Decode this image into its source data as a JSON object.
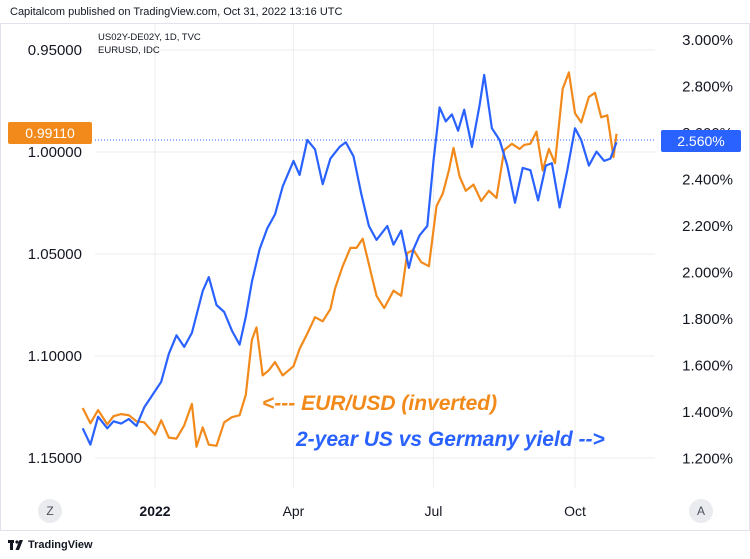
{
  "header": {
    "published": "Capitalcom published on TradingView.com, Oct 31, 2022 13:16 UTC"
  },
  "legend": {
    "series1": "US02Y-DE02Y, 1D, TVC",
    "series2": "EURUSD, IDC"
  },
  "buttons": {
    "left": "Z",
    "right": "A"
  },
  "footer": {
    "brand": "TradingView"
  },
  "colors": {
    "eurusd": "#f28a1b",
    "yield": "#2962ff",
    "grid": "#eeeeee"
  },
  "chart_data": {
    "type": "line",
    "left_axis": {
      "ticks": [
        "0.95000",
        "1.00000",
        "1.05000",
        "1.10000",
        "1.15000"
      ],
      "values": [
        0.95,
        1.0,
        1.05,
        1.1,
        1.15
      ],
      "inverted": true
    },
    "right_axis": {
      "ticks": [
        "3.000%",
        "2.800%",
        "2.600%",
        "2.400%",
        "2.200%",
        "2.000%",
        "1.800%",
        "1.600%",
        "1.400%",
        "1.200%"
      ],
      "values": [
        3.0,
        2.8,
        2.6,
        2.4,
        2.2,
        2.0,
        1.8,
        1.6,
        1.4,
        1.2
      ]
    },
    "x_ticks": [
      {
        "label": "2022",
        "date": "2022-01-01",
        "bold": true
      },
      {
        "label": "Apr",
        "date": "2022-04-01",
        "bold": false
      },
      {
        "label": "Jul",
        "date": "2022-07-01",
        "bold": false
      },
      {
        "label": "Oct",
        "date": "2022-10-01",
        "bold": false
      }
    ],
    "last_values": {
      "eurusd": "0.99110",
      "yield": "2.560%"
    },
    "annotations": {
      "orange": "<--- EUR/USD (inverted)",
      "blue": "2-year US vs Germany yield -->"
    },
    "series": [
      {
        "key": "eurusd",
        "axis": "left",
        "dates": [
          "2021-11-15",
          "2021-11-20",
          "2021-11-25",
          "2021-12-01",
          "2021-12-05",
          "2021-12-10",
          "2021-12-15",
          "2021-12-20",
          "2021-12-25",
          "2022-01-01",
          "2022-01-05",
          "2022-01-10",
          "2022-01-15",
          "2022-01-20",
          "2022-01-25",
          "2022-01-28",
          "2022-02-01",
          "2022-02-05",
          "2022-02-10",
          "2022-02-15",
          "2022-02-20",
          "2022-02-25",
          "2022-03-01",
          "2022-03-05",
          "2022-03-08",
          "2022-03-12",
          "2022-03-16",
          "2022-03-20",
          "2022-03-25",
          "2022-04-01",
          "2022-04-05",
          "2022-04-10",
          "2022-04-15",
          "2022-04-20",
          "2022-04-25",
          "2022-04-28",
          "2022-05-03",
          "2022-05-08",
          "2022-05-12",
          "2022-05-16",
          "2022-05-20",
          "2022-05-25",
          "2022-05-30",
          "2022-06-05",
          "2022-06-10",
          "2022-06-14",
          "2022-06-18",
          "2022-06-23",
          "2022-06-28",
          "2022-07-03",
          "2022-07-07",
          "2022-07-11",
          "2022-07-14",
          "2022-07-18",
          "2022-07-22",
          "2022-07-27",
          "2022-08-01",
          "2022-08-06",
          "2022-08-11",
          "2022-08-16",
          "2022-08-21",
          "2022-08-26",
          "2022-08-29",
          "2022-09-02",
          "2022-09-06",
          "2022-09-10",
          "2022-09-14",
          "2022-09-18",
          "2022-09-23",
          "2022-09-27",
          "2022-10-01",
          "2022-10-05",
          "2022-10-10",
          "2022-10-14",
          "2022-10-18",
          "2022-10-22",
          "2022-10-26",
          "2022-10-28"
        ],
        "values": [
          1.1255,
          1.133,
          1.1265,
          1.1335,
          1.1295,
          1.1285,
          1.129,
          1.132,
          1.1325,
          1.1385,
          1.1315,
          1.14,
          1.1405,
          1.134,
          1.1235,
          1.1445,
          1.135,
          1.1435,
          1.144,
          1.1325,
          1.13,
          1.129,
          1.119,
          1.092,
          1.086,
          1.1095,
          1.107,
          1.103,
          1.1095,
          1.105,
          1.0965,
          1.089,
          1.081,
          1.083,
          1.077,
          1.067,
          1.056,
          1.047,
          1.047,
          1.0425,
          1.055,
          1.0705,
          1.0765,
          1.068,
          1.0705,
          1.0495,
          1.048,
          1.054,
          1.056,
          1.0265,
          1.0205,
          1.009,
          0.998,
          1.012,
          1.019,
          1.016,
          1.024,
          1.019,
          1.0225,
          0.999,
          0.996,
          0.9985,
          0.9965,
          0.996,
          0.99,
          1.009,
          0.9985,
          1.0055,
          0.969,
          0.961,
          0.981,
          0.9855,
          0.973,
          0.971,
          0.983,
          0.982,
          1.0025,
          0.9911
        ]
      },
      {
        "key": "yield",
        "axis": "right",
        "dates": [
          "2021-11-15",
          "2021-11-20",
          "2021-11-25",
          "2021-12-01",
          "2021-12-05",
          "2021-12-10",
          "2021-12-15",
          "2021-12-20",
          "2021-12-25",
          "2022-01-01",
          "2022-01-05",
          "2022-01-10",
          "2022-01-15",
          "2022-01-20",
          "2022-01-25",
          "2022-02-01",
          "2022-02-05",
          "2022-02-10",
          "2022-02-15",
          "2022-02-20",
          "2022-02-25",
          "2022-03-01",
          "2022-03-05",
          "2022-03-10",
          "2022-03-15",
          "2022-03-20",
          "2022-03-25",
          "2022-04-01",
          "2022-04-05",
          "2022-04-10",
          "2022-04-15",
          "2022-04-20",
          "2022-04-25",
          "2022-05-01",
          "2022-05-05",
          "2022-05-10",
          "2022-05-15",
          "2022-05-20",
          "2022-05-25",
          "2022-06-01",
          "2022-06-05",
          "2022-06-10",
          "2022-06-15",
          "2022-06-18",
          "2022-06-22",
          "2022-06-27",
          "2022-07-01",
          "2022-07-05",
          "2022-07-09",
          "2022-07-13",
          "2022-07-17",
          "2022-07-21",
          "2022-07-26",
          "2022-07-31",
          "2022-08-03",
          "2022-08-08",
          "2022-08-13",
          "2022-08-18",
          "2022-08-23",
          "2022-08-28",
          "2022-09-02",
          "2022-09-07",
          "2022-09-12",
          "2022-09-16",
          "2022-09-21",
          "2022-09-26",
          "2022-10-01",
          "2022-10-05",
          "2022-10-10",
          "2022-10-15",
          "2022-10-20",
          "2022-10-24",
          "2022-10-28"
        ],
        "values": [
          1.33,
          1.26,
          1.38,
          1.33,
          1.36,
          1.35,
          1.37,
          1.34,
          1.42,
          1.49,
          1.53,
          1.65,
          1.73,
          1.68,
          1.74,
          1.92,
          1.98,
          1.86,
          1.83,
          1.75,
          1.69,
          1.81,
          1.96,
          2.1,
          2.19,
          2.25,
          2.37,
          2.48,
          2.42,
          2.57,
          2.53,
          2.38,
          2.49,
          2.54,
          2.56,
          2.5,
          2.34,
          2.2,
          2.14,
          2.2,
          2.12,
          2.18,
          2.02,
          2.1,
          2.16,
          2.2,
          2.48,
          2.71,
          2.65,
          2.68,
          2.61,
          2.7,
          2.54,
          2.72,
          2.85,
          2.62,
          2.57,
          2.46,
          2.3,
          2.45,
          2.44,
          2.31,
          2.46,
          2.47,
          2.28,
          2.44,
          2.62,
          2.57,
          2.46,
          2.52,
          2.48,
          2.49,
          2.56
        ]
      }
    ]
  }
}
